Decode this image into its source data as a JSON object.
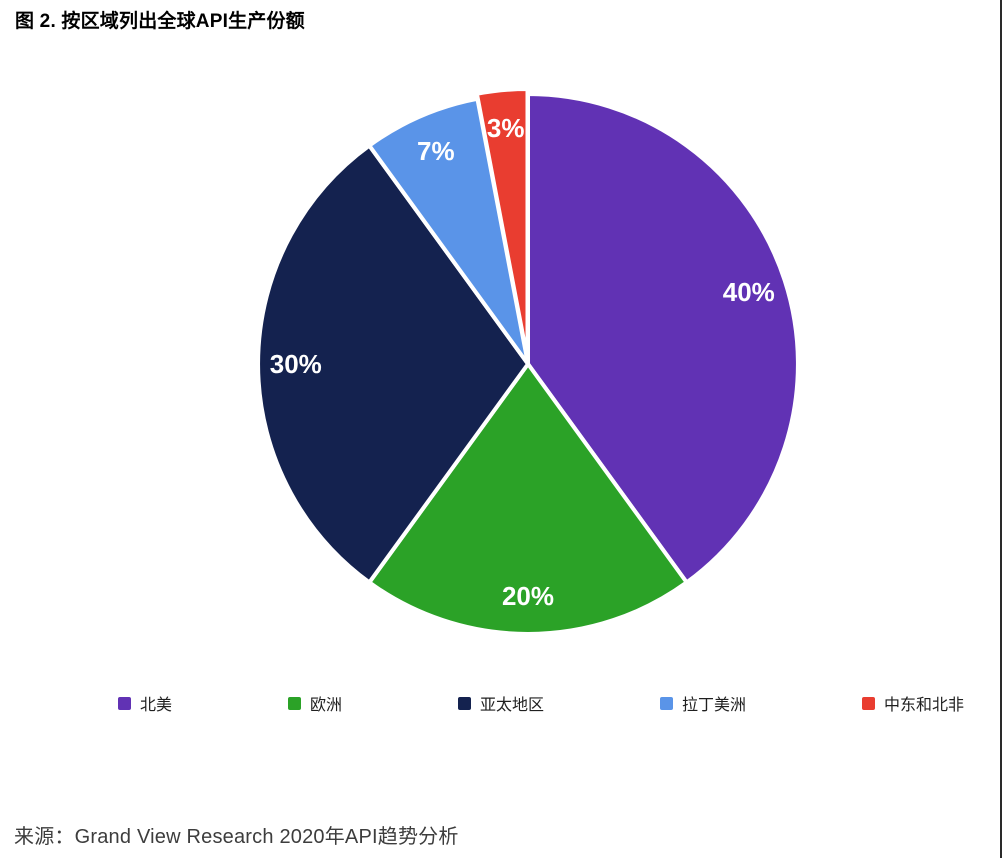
{
  "page": {
    "title": "图 2. 按区域列出全球API生产份额",
    "source": "来源：Grand View Research 2020年API趋势分析"
  },
  "chart_data": {
    "type": "pie",
    "title": "图 2. 按区域列出全球API生产份额",
    "source": "来源：Grand View Research 2020年API趋势分析",
    "unit": "percent",
    "start_angle_deg": 0,
    "direction": "clockwise",
    "legend_position": "bottom",
    "slice_label_color": "#ffffff",
    "slice_gap_color": "#ffffff",
    "slices": [
      {
        "key": "north-america",
        "label": "北美",
        "value": 40,
        "display": "40%",
        "color": "#6132B4",
        "exploded": false
      },
      {
        "key": "europe",
        "label": "欧洲",
        "value": 20,
        "display": "20%",
        "color": "#2BA227",
        "exploded": false
      },
      {
        "key": "asia-pacific",
        "label": "亚太地区",
        "value": 30,
        "display": "30%",
        "color": "#14224F",
        "exploded": false
      },
      {
        "key": "latin-america",
        "label": "拉丁美洲",
        "value": 7,
        "display": "7%",
        "color": "#5A94E8",
        "exploded": false
      },
      {
        "key": "mena",
        "label": "中东和北非",
        "value": 3,
        "display": "3%",
        "color": "#E93D30",
        "exploded": true
      }
    ]
  }
}
